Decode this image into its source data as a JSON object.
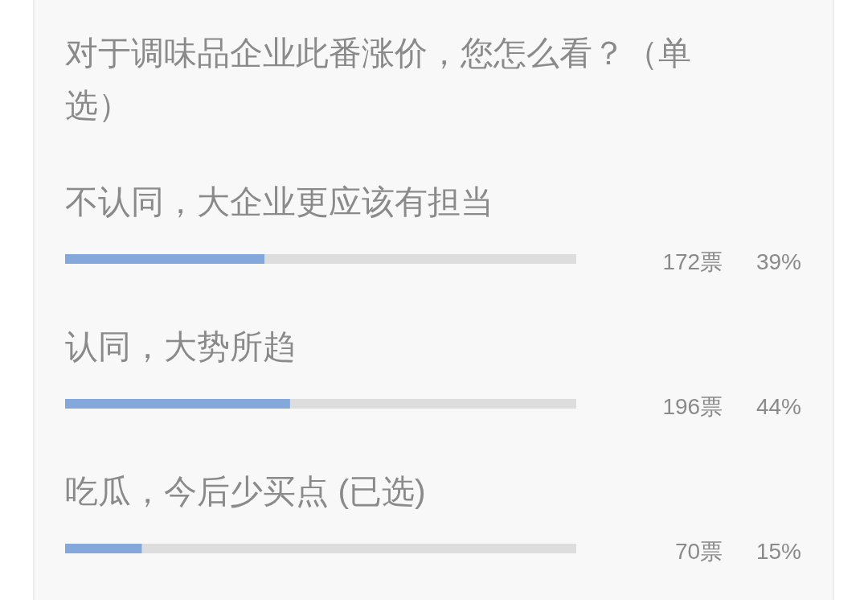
{
  "chart_data": {
    "type": "bar",
    "orientation": "horizontal",
    "title": "对于调味品企业此番涨价，您怎么看？（单选）",
    "categories": [
      "不认同，大企业更应该有担当",
      "认同，大势所趋",
      "吃瓜，今后少买点 (已选)"
    ],
    "values": [
      39,
      44,
      15
    ],
    "color": "#84a8dc",
    "value_labels": [
      "172票 39%",
      "196票 44%",
      "70票 15%"
    ],
    "xlim": [
      0,
      100
    ]
  }
}
